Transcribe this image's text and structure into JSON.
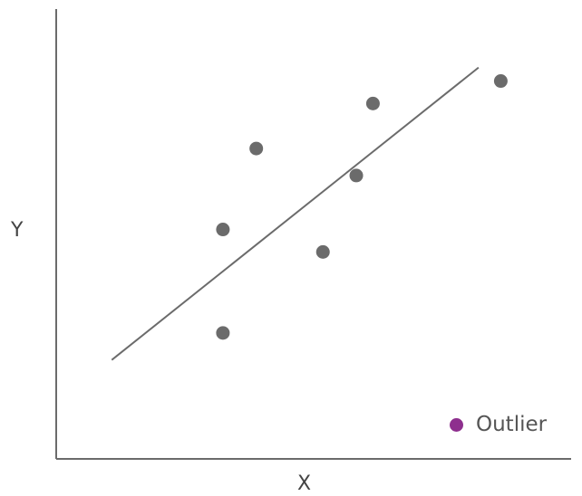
{
  "chart_data": {
    "type": "scatter",
    "title": "",
    "xlabel": "X",
    "ylabel": "Y",
    "xlim": [
      0,
      10
    ],
    "ylim": [
      0,
      10
    ],
    "grid": false,
    "points": [
      {
        "x": 3.0,
        "y": 2.8
      },
      {
        "x": 3.0,
        "y": 5.1
      },
      {
        "x": 3.6,
        "y": 6.9
      },
      {
        "x": 4.8,
        "y": 4.6
      },
      {
        "x": 5.4,
        "y": 6.3
      },
      {
        "x": 5.7,
        "y": 7.9
      },
      {
        "x": 8.0,
        "y": 8.4
      }
    ],
    "trendline": {
      "x": [
        1.0,
        7.6
      ],
      "y": [
        2.2,
        8.7
      ]
    },
    "legend": {
      "placement": "bottom-right",
      "entries": [
        {
          "label": "Outlier",
          "color": "#8e2f8e"
        }
      ]
    },
    "colors": {
      "points": "#6b6b6b",
      "axes": "#6b6b6b",
      "trendline": "#6b6b6b"
    }
  }
}
